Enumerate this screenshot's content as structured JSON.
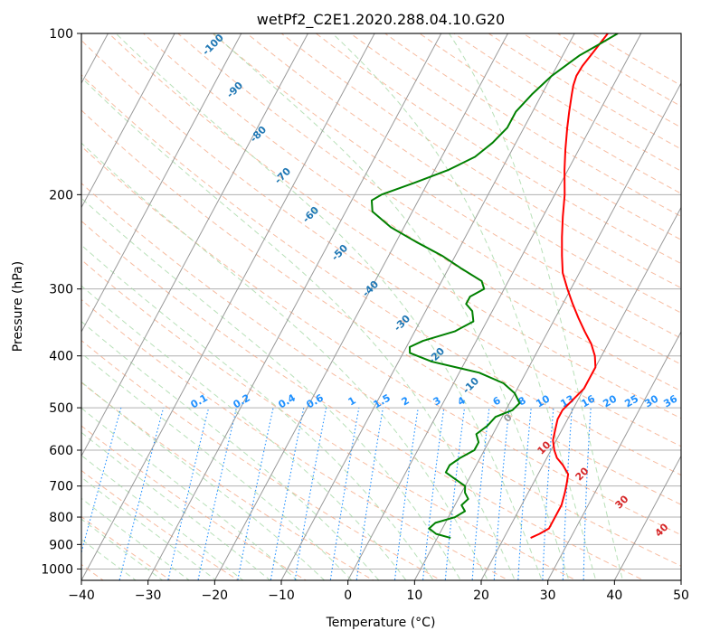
{
  "chart_data": {
    "type": "line",
    "title": "wetPf2_C2E1.2020.288.04.10.G20",
    "xlabel": "Temperature (°C)",
    "ylabel": "Pressure (hPa)",
    "xlim": [
      -40,
      50
    ],
    "ylim": [
      1050,
      100
    ],
    "y_scale": "log",
    "grid": true,
    "x_ticks": [
      -40,
      -30,
      -20,
      -10,
      0,
      10,
      20,
      30,
      40,
      50
    ],
    "y_ticks": [
      100,
      200,
      300,
      400,
      500,
      600,
      700,
      800,
      900,
      1000
    ],
    "series": [
      {
        "color": "#ff0000",
        "pressure": [
          875,
          860,
          840,
          800,
          760,
          720,
          690,
          665,
          640,
          620,
          600,
          575,
          550,
          525,
          505,
          490,
          475,
          460,
          440,
          420,
          400,
          380,
          360,
          340,
          320,
          300,
          280,
          260,
          240,
          220,
          200,
          180,
          165,
          150,
          140,
          130,
          125,
          120,
          115,
          110,
          105,
          100
        ],
        "temperature": [
          24,
          25,
          26,
          26,
          26,
          25.5,
          25,
          24.5,
          23,
          21.5,
          20.5,
          19.5,
          19,
          18.5,
          18.5,
          19,
          19.5,
          20,
          20,
          20,
          19,
          17.5,
          15.5,
          13.5,
          11.5,
          9.5,
          7.5,
          6,
          4.5,
          3,
          1.5,
          -0.5,
          -2,
          -3.5,
          -4.5,
          -5.5,
          -6,
          -6.3,
          -6.2,
          -5.8,
          -5.4,
          -5
        ]
      },
      {
        "color": "#008000",
        "pressure": [
          875,
          860,
          840,
          820,
          800,
          780,
          760,
          740,
          720,
          700,
          680,
          660,
          640,
          620,
          600,
          580,
          560,
          540,
          520,
          505,
          490,
          470,
          450,
          430,
          410,
          395,
          385,
          375,
          360,
          345,
          330,
          320,
          310,
          300,
          290,
          275,
          260,
          245,
          230,
          215,
          205,
          200,
          190,
          180,
          170,
          160,
          150,
          140,
          130,
          120,
          110,
          105,
          100
        ],
        "temperature": [
          12,
          9.5,
          8,
          8.5,
          11,
          12,
          11,
          11.5,
          10.5,
          10,
          8,
          6,
          6,
          7,
          8.5,
          8.5,
          7.5,
          8.5,
          9,
          11,
          11.5,
          10,
          7.5,
          3,
          -5,
          -9,
          -9.5,
          -8,
          -4,
          -2,
          -3,
          -4.5,
          -4.5,
          -3,
          -4,
          -8,
          -12,
          -17,
          -22,
          -26,
          -27,
          -26,
          -22,
          -18,
          -15,
          -13.5,
          -12.5,
          -12.5,
          -11.5,
          -10,
          -7.5,
          -5.5,
          -3.5
        ]
      }
    ],
    "dry_adiabat_labels": [
      "-100",
      "-90",
      "-80",
      "-70",
      "-60",
      "-50",
      "-40",
      "-30",
      "-20",
      "-10",
      "0",
      "10",
      "20",
      "30",
      "40"
    ],
    "dry_adiabat_values": [
      -100,
      -90,
      -80,
      -70,
      -60,
      -50,
      -40,
      -30,
      -20,
      -10,
      0,
      10,
      20,
      30,
      40
    ],
    "mixing_ratio_labels": [
      "0.1",
      "0.2",
      "0.4",
      "0.6",
      "1",
      "1.5",
      "2",
      "3",
      "4",
      "6",
      "8",
      "10",
      "13",
      "16",
      "20",
      "25",
      "30",
      "36"
    ],
    "mixing_ratio_values": [
      0.1,
      0.2,
      0.4,
      0.6,
      1,
      1.5,
      2,
      3,
      4,
      6,
      8,
      10,
      13,
      16,
      20,
      25,
      30,
      36
    ],
    "moist_label": "0",
    "colors": {
      "temperature": "#ff0000",
      "dewpoint": "#008000",
      "isotherm": "#999999",
      "dry_adiabat": "#f4a582",
      "moist_adiabat": "#a6d8a6",
      "mixing_ratio": "#1f8fff",
      "label_dark_blue": "#1f77b4",
      "label_light_blue": "#1e90ff",
      "label_red": "#d62728",
      "isobar": "#b0b0b0"
    }
  }
}
